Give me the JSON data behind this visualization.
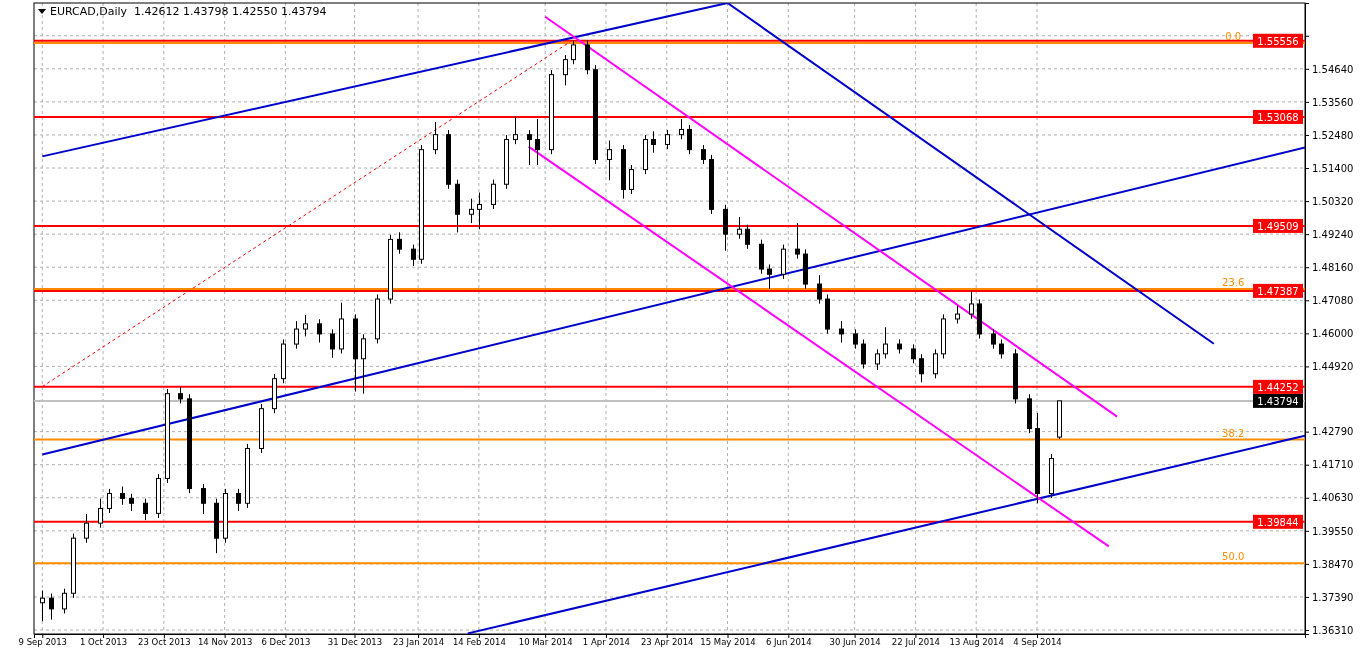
{
  "chart_data": {
    "type": "candlestick",
    "title": "EURCAD,Daily  1.42612 1.43798 1.42550 1.43794",
    "color": "#000000",
    "x": [
      "2013-09-09",
      "2013-09-12",
      "2013-09-17",
      "2013-09-20",
      "2013-09-25",
      "2013-09-30",
      "2013-10-03",
      "2013-10-08",
      "2013-10-11",
      "2013-10-16",
      "2013-10-21",
      "2013-10-24",
      "2013-10-29",
      "2013-11-01",
      "2013-11-06",
      "2013-11-11",
      "2013-11-14",
      "2013-11-19",
      "2013-11-22",
      "2013-11-27",
      "2013-12-02",
      "2013-12-05",
      "2013-12-10",
      "2013-12-13",
      "2013-12-18",
      "2013-12-23",
      "2013-12-26",
      "2013-12-31",
      "2014-01-03",
      "2014-01-08",
      "2014-01-13",
      "2014-01-16",
      "2014-01-21",
      "2014-01-24",
      "2014-01-29",
      "2014-02-03",
      "2014-02-06",
      "2014-02-11",
      "2014-02-14",
      "2014-02-19",
      "2014-02-24",
      "2014-02-27",
      "2014-03-04",
      "2014-03-07",
      "2014-03-12",
      "2014-03-17",
      "2014-03-20",
      "2014-03-25",
      "2014-03-28",
      "2014-04-02",
      "2014-04-07",
      "2014-04-10",
      "2014-04-15",
      "2014-04-18",
      "2014-04-23",
      "2014-04-28",
      "2014-05-01",
      "2014-05-06",
      "2014-05-09",
      "2014-05-14",
      "2014-05-19",
      "2014-05-22",
      "2014-05-27",
      "2014-05-30",
      "2014-06-04",
      "2014-06-09",
      "2014-06-12",
      "2014-06-17",
      "2014-06-20",
      "2014-06-25",
      "2014-06-30",
      "2014-07-03",
      "2014-07-08",
      "2014-07-11",
      "2014-07-16",
      "2014-07-21",
      "2014-07-24",
      "2014-07-29",
      "2014-08-01",
      "2014-08-06",
      "2014-08-11",
      "2014-08-14",
      "2014-08-19",
      "2014-08-22",
      "2014-08-27",
      "2014-09-01",
      "2014-09-04",
      "2014-09-09",
      "2014-09-12"
    ],
    "ohlc": [
      [
        1.372,
        1.376,
        1.366,
        1.3735
      ],
      [
        1.3735,
        1.375,
        1.3665,
        1.37
      ],
      [
        1.37,
        1.3766,
        1.3685,
        1.3751
      ],
      [
        1.3751,
        1.3946,
        1.3736,
        1.3931
      ],
      [
        1.3931,
        1.401,
        1.3916,
        1.398
      ],
      [
        1.398,
        1.406,
        1.3965,
        1.4028
      ],
      [
        1.4028,
        1.4092,
        1.4013,
        1.4077
      ],
      [
        1.4077,
        1.41,
        1.404,
        1.4061
      ],
      [
        1.4061,
        1.4076,
        1.402,
        1.4045
      ],
      [
        1.4045,
        1.406,
        1.399,
        1.4012
      ],
      [
        1.4012,
        1.4141,
        1.3997,
        1.4126
      ],
      [
        1.4126,
        1.4418,
        1.4111,
        1.4403
      ],
      [
        1.4403,
        1.4425,
        1.4371,
        1.4386
      ],
      [
        1.4386,
        1.4401,
        1.4078,
        1.4093
      ],
      [
        1.4093,
        1.4108,
        1.401,
        1.4045
      ],
      [
        1.4045,
        1.406,
        1.3882,
        1.3931
      ],
      [
        1.3931,
        1.4092,
        1.3916,
        1.4077
      ],
      [
        1.4077,
        1.4092,
        1.402,
        1.4045
      ],
      [
        1.4045,
        1.4239,
        1.403,
        1.4224
      ],
      [
        1.4224,
        1.4369,
        1.4209,
        1.4354
      ],
      [
        1.4354,
        1.4467,
        1.4339,
        1.4452
      ],
      [
        1.4452,
        1.458,
        1.4437,
        1.4565
      ],
      [
        1.4565,
        1.464,
        1.455,
        1.4614
      ],
      [
        1.4614,
        1.466,
        1.459,
        1.4631
      ],
      [
        1.4631,
        1.4646,
        1.457,
        1.4598
      ],
      [
        1.4598,
        1.4613,
        1.452,
        1.4549
      ],
      [
        1.4549,
        1.47,
        1.4534,
        1.4647
      ],
      [
        1.4647,
        1.4662,
        1.441,
        1.4517
      ],
      [
        1.4517,
        1.4597,
        1.4403,
        1.4582
      ],
      [
        1.4582,
        1.4727,
        1.4567,
        1.4712
      ],
      [
        1.4712,
        1.4922,
        1.4697,
        1.4907
      ],
      [
        1.4907,
        1.493,
        1.486,
        1.4875
      ],
      [
        1.4875,
        1.489,
        1.482,
        1.4842
      ],
      [
        1.4842,
        1.5215,
        1.4827,
        1.52
      ],
      [
        1.52,
        1.529,
        1.5185,
        1.5249
      ],
      [
        1.5249,
        1.5264,
        1.5072,
        1.5087
      ],
      [
        1.5087,
        1.5102,
        1.493,
        1.4989
      ],
      [
        1.4989,
        1.504,
        1.496,
        1.5005
      ],
      [
        1.5005,
        1.506,
        1.494,
        1.5021
      ],
      [
        1.5021,
        1.5102,
        1.5006,
        1.5087
      ],
      [
        1.5087,
        1.5248,
        1.5072,
        1.5233
      ],
      [
        1.5233,
        1.531,
        1.5218,
        1.5249
      ],
      [
        1.5249,
        1.5264,
        1.515,
        1.5233
      ],
      [
        1.5233,
        1.53,
        1.515,
        1.52
      ],
      [
        1.52,
        1.546,
        1.5185,
        1.5445
      ],
      [
        1.5445,
        1.5509,
        1.541,
        1.5494
      ],
      [
        1.5494,
        1.5556,
        1.5479,
        1.5542
      ],
      [
        1.5542,
        1.5557,
        1.5446,
        1.5461
      ],
      [
        1.5461,
        1.5476,
        1.5153,
        1.5168
      ],
      [
        1.5168,
        1.523,
        1.51,
        1.52
      ],
      [
        1.52,
        1.5215,
        1.504,
        1.507
      ],
      [
        1.507,
        1.515,
        1.5055,
        1.5135
      ],
      [
        1.5135,
        1.5248,
        1.512,
        1.5233
      ],
      [
        1.5233,
        1.526,
        1.519,
        1.5217
      ],
      [
        1.5217,
        1.5264,
        1.5202,
        1.5249
      ],
      [
        1.5249,
        1.53,
        1.5234,
        1.5266
      ],
      [
        1.5266,
        1.5281,
        1.5185,
        1.52
      ],
      [
        1.52,
        1.5215,
        1.5153,
        1.5168
      ],
      [
        1.5168,
        1.5183,
        1.499,
        1.5005
      ],
      [
        1.5005,
        1.502,
        1.487,
        1.4924
      ],
      [
        1.4924,
        1.498,
        1.4909,
        1.494
      ],
      [
        1.494,
        1.4955,
        1.4876,
        1.4891
      ],
      [
        1.4891,
        1.4906,
        1.4795,
        1.481
      ],
      [
        1.481,
        1.4825,
        1.4745,
        1.4793
      ],
      [
        1.4793,
        1.489,
        1.4778,
        1.4875
      ],
      [
        1.4875,
        1.496,
        1.4844,
        1.4859
      ],
      [
        1.4859,
        1.4874,
        1.4746,
        1.4761
      ],
      [
        1.4761,
        1.479,
        1.4697,
        1.4712
      ],
      [
        1.4712,
        1.4727,
        1.4599,
        1.4614
      ],
      [
        1.4614,
        1.464,
        1.457,
        1.4598
      ],
      [
        1.4598,
        1.4613,
        1.455,
        1.4565
      ],
      [
        1.4565,
        1.458,
        1.4485,
        1.45
      ],
      [
        1.45,
        1.4548,
        1.448,
        1.4533
      ],
      [
        1.4533,
        1.462,
        1.4518,
        1.4565
      ],
      [
        1.4565,
        1.458,
        1.4534,
        1.4549
      ],
      [
        1.4549,
        1.4564,
        1.4502,
        1.4517
      ],
      [
        1.4517,
        1.4532,
        1.444,
        1.4468
      ],
      [
        1.4468,
        1.4548,
        1.4453,
        1.4533
      ],
      [
        1.4533,
        1.4662,
        1.4518,
        1.4647
      ],
      [
        1.4647,
        1.469,
        1.4632,
        1.4663
      ],
      [
        1.4663,
        1.4738,
        1.4648,
        1.4696
      ],
      [
        1.4696,
        1.4711,
        1.4583,
        1.4598
      ],
      [
        1.4598,
        1.4613,
        1.455,
        1.4565
      ],
      [
        1.4565,
        1.458,
        1.4518,
        1.4533
      ],
      [
        1.4533,
        1.4548,
        1.4371,
        1.4386
      ],
      [
        1.4386,
        1.4401,
        1.4274,
        1.4289
      ],
      [
        1.4289,
        1.434,
        1.4045,
        1.4077
      ],
      [
        1.4077,
        1.4206,
        1.4062,
        1.4191
      ],
      [
        1.42612,
        1.43798,
        1.4255,
        1.43794
      ]
    ],
    "series": [
      {
        "type": "line",
        "color": "#0000cc",
        "x": [
          "2013-09-09",
          "2014-05-15"
        ],
        "values": [
          1.5178,
          1.5679
        ]
      },
      {
        "type": "line",
        "color": "#0000cc",
        "x": [
          "2014-05-15",
          "2014-11-07"
        ],
        "values": [
          1.5679,
          1.4566
        ]
      },
      {
        "type": "line",
        "color": "#0000cc",
        "x": [
          "2013-09-09",
          "2014-12-10"
        ],
        "values": [
          1.4204,
          1.5207
        ]
      },
      {
        "type": "line",
        "color": "#0000cc",
        "x": [
          "2014-02-10",
          "2014-12-10"
        ],
        "values": [
          1.362,
          1.4266
        ]
      },
      {
        "type": "line",
        "color": "#ff00ff",
        "x": [
          "2014-03-10",
          "2014-10-03"
        ],
        "values": [
          1.5634,
          1.4328
        ]
      },
      {
        "type": "line",
        "color": "#ff00ff",
        "x": [
          "2014-03-04",
          "2014-09-30"
        ],
        "values": [
          1.521,
          1.3904
        ]
      },
      {
        "type": "line",
        "color": "#ff0000",
        "line_style": "dashed",
        "x": [
          "2013-09-09",
          "2014-03-19"
        ],
        "values": [
          1.4426,
          1.5552
        ]
      }
    ],
    "ref_lines": [
      {
        "axis": "y",
        "value": 1.5548,
        "color": "#ff8c00"
      },
      {
        "axis": "y",
        "value": 1.4745,
        "color": "#ff8c00"
      },
      {
        "axis": "y",
        "value": 1.4253,
        "color": "#ff8c00"
      },
      {
        "axis": "y",
        "value": 1.3849,
        "color": "#ff8c00"
      },
      {
        "axis": "y",
        "value": 1.43794,
        "label": "1.43794",
        "color": "#c0c0c0"
      },
      {
        "axis": "y",
        "value": 1.55556,
        "label": "1.55556",
        "color": "#ff0000"
      },
      {
        "axis": "y",
        "value": 1.53068,
        "label": "1.53068",
        "color": "#ff0000"
      },
      {
        "axis": "y",
        "value": 1.49509,
        "label": "1.49509",
        "color": "#ff0000"
      },
      {
        "axis": "y",
        "value": 1.47387,
        "label": "1.47387",
        "color": "#ff0000"
      },
      {
        "axis": "y",
        "value": 1.44252,
        "label": "1.44252",
        "color": "#ff0000"
      },
      {
        "axis": "y",
        "value": 1.39844,
        "label": "1.39844",
        "color": "#ff0000"
      }
    ],
    "xlim": [
      "2013-09-06",
      "2014-12-10"
    ],
    "xticks": [
      {
        "value": "2013-09-09",
        "label": "9 Sep 2013"
      },
      {
        "value": "2013-10-01",
        "label": "1 Oct 2013"
      },
      {
        "value": "2013-10-23",
        "label": "23 Oct 2013"
      },
      {
        "value": "2013-11-14",
        "label": "14 Nov 2013"
      },
      {
        "value": "2013-12-06",
        "label": "6 Dec 2013"
      },
      {
        "value": "2013-12-31",
        "label": "31 Dec 2013"
      },
      {
        "value": "2014-01-23",
        "label": "23 Jan 2014"
      },
      {
        "value": "2014-02-14",
        "label": "14 Feb 2014"
      },
      {
        "value": "2014-03-10",
        "label": "10 Mar 2014"
      },
      {
        "value": "2014-04-01",
        "label": "1 Apr 2014"
      },
      {
        "value": "2014-04-23",
        "label": "23 Apr 2014"
      },
      {
        "value": "2014-05-15",
        "label": "15 May 2014"
      },
      {
        "value": "2014-06-06",
        "label": "6 Jun 2014"
      },
      {
        "value": "2014-06-30",
        "label": "30 Jun 2014"
      },
      {
        "value": "2014-07-22",
        "label": "22 Jul 2014"
      },
      {
        "value": "2014-08-13",
        "label": "13 Aug 2014"
      },
      {
        "value": "2014-09-04",
        "label": "4 Sep 2014"
      }
    ],
    "ylim": [
      1.3618,
      1.5679
    ],
    "yticks": [
      {
        "value": 1.3631,
        "label": "1.36310"
      },
      {
        "value": 1.3739,
        "label": "1.37390"
      },
      {
        "value": 1.3847,
        "label": "1.38470"
      },
      {
        "value": 1.3955,
        "label": "1.39550"
      },
      {
        "value": 1.4063,
        "label": "1.40630"
      },
      {
        "value": 1.4171,
        "label": "1.41710"
      },
      {
        "value": 1.4279,
        "label": "1.42790"
      },
      {
        "value": 1.4492,
        "label": "1.44920"
      },
      {
        "value": 1.46,
        "label": "1.46000"
      },
      {
        "value": 1.4708,
        "label": "1.47080"
      },
      {
        "value": 1.4816,
        "label": "1.48160"
      },
      {
        "value": 1.4924,
        "label": "1.49240"
      },
      {
        "value": 1.5032,
        "label": "1.50320"
      },
      {
        "value": 1.514,
        "label": "1.51400"
      },
      {
        "value": 1.5248,
        "label": "1.52480"
      },
      {
        "value": 1.5356,
        "label": "1.53560"
      },
      {
        "value": 1.5464,
        "label": "1.54640"
      },
      {
        "value": 1.5572,
        "label": null
      }
    ],
    "annotations": [
      {
        "text": "0.0",
        "x": "2014-11-14",
        "y": 1.5548
      },
      {
        "text": "23.6",
        "x": "2014-11-14",
        "y": 1.4745
      },
      {
        "text": "38.2",
        "x": "2014-11-14",
        "y": 1.4253
      },
      {
        "text": "50.0",
        "x": "2014-11-14",
        "y": 1.3849
      }
    ],
    "grid": true
  }
}
